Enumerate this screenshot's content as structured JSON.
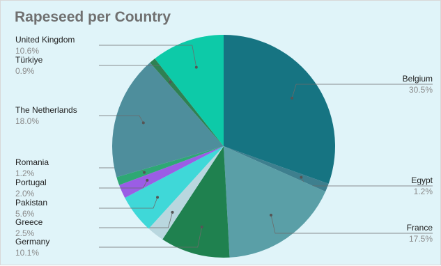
{
  "chart_data": {
    "type": "pie",
    "title": "Rapeseed per Country",
    "slices": [
      {
        "label": "Belgium",
        "percent_text": "30.5%",
        "value": 30.5,
        "color": "#167482"
      },
      {
        "label": "Egypt",
        "percent_text": "1.2%",
        "value": 1.2,
        "color": "#3e7f8e"
      },
      {
        "label": "France",
        "percent_text": "17.5%",
        "value": 17.5,
        "color": "#5a9fa7"
      },
      {
        "label": "Germany",
        "percent_text": "10.1%",
        "value": 10.1,
        "color": "#1f814f"
      },
      {
        "label": "Greece",
        "percent_text": "2.5%",
        "value": 2.5,
        "color": "#b9d7df"
      },
      {
        "label": "Pakistan",
        "percent_text": "5.6%",
        "value": 5.6,
        "color": "#3fd8d8"
      },
      {
        "label": "Portugal",
        "percent_text": "2.0%",
        "value": 2.0,
        "color": "#9b5de5"
      },
      {
        "label": "Romania",
        "percent_text": "1.2%",
        "value": 1.2,
        "color": "#2ea874"
      },
      {
        "label": "The Netherlands",
        "percent_text": "18.0%",
        "value": 18.0,
        "color": "#4e8e9c"
      },
      {
        "label": "Türkiye",
        "percent_text": "0.9%",
        "value": 0.9,
        "color": "#2f8052"
      },
      {
        "label": "United Kingdom",
        "percent_text": "10.6%",
        "value": 10.6,
        "color": "#0dcaa8"
      }
    ]
  }
}
